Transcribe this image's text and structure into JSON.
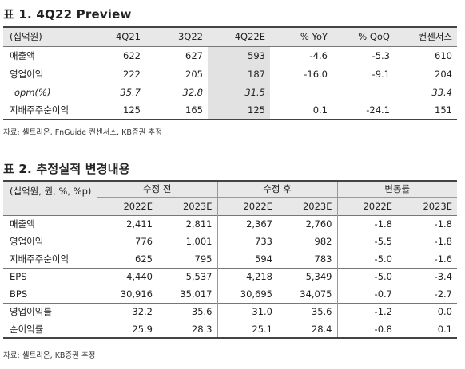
{
  "table1": {
    "title": "표 1. 4Q22 Preview",
    "header": [
      "(십억원)",
      "4Q21",
      "3Q22",
      "4Q22E",
      "% YoY",
      "% QoQ",
      "컨센서스"
    ],
    "rows": [
      {
        "label": "매출액",
        "cells": [
          "622",
          "627",
          "593",
          "-4.6",
          "-5.3",
          "610"
        ]
      },
      {
        "label": "영업이익",
        "cells": [
          "222",
          "205",
          "187",
          "-16.0",
          "-9.1",
          "204"
        ]
      },
      {
        "label": "opm(%)",
        "cells": [
          "35.7",
          "32.8",
          "31.5",
          "",
          "",
          "33.4"
        ]
      },
      {
        "label": "지배주주순이익",
        "cells": [
          "125",
          "165",
          "125",
          "0.1",
          "-24.1",
          "151"
        ]
      }
    ],
    "source": "자료: 셀트리온, FnGuide 컨센서스, KB증권 추정"
  },
  "table2": {
    "title": "표 2. 추정실적 변경내용",
    "unit_label": "(십억원, 원, %, %p)",
    "groups": [
      "수정 전",
      "수정 후",
      "변동률"
    ],
    "years": [
      "2022E",
      "2023E",
      "2022E",
      "2023E",
      "2022E",
      "2023E"
    ],
    "rows": [
      {
        "label": "매출액",
        "cells": [
          "2,411",
          "2,811",
          "2,367",
          "2,760",
          "-1.8",
          "-1.8"
        ]
      },
      {
        "label": "영업이익",
        "cells": [
          "776",
          "1,001",
          "733",
          "982",
          "-5.5",
          "-1.8"
        ]
      },
      {
        "label": "지배주주순이익",
        "cells": [
          "625",
          "795",
          "594",
          "783",
          "-5.0",
          "-1.6"
        ]
      },
      {
        "label": "EPS",
        "cells": [
          "4,440",
          "5,537",
          "4,218",
          "5,349",
          "-5.0",
          "-3.4"
        ]
      },
      {
        "label": "BPS",
        "cells": [
          "30,916",
          "35,017",
          "30,695",
          "34,075",
          "-0.7",
          "-2.7"
        ]
      },
      {
        "label": "영업이익률",
        "cells": [
          "32.2",
          "35.6",
          "31.0",
          "35.6",
          "-1.2",
          "0.0"
        ]
      },
      {
        "label": "순이익률",
        "cells": [
          "25.9",
          "28.3",
          "25.1",
          "28.4",
          "-0.8",
          "0.1"
        ]
      }
    ],
    "source": "자료: 셀트리온, KB증권 추정"
  }
}
